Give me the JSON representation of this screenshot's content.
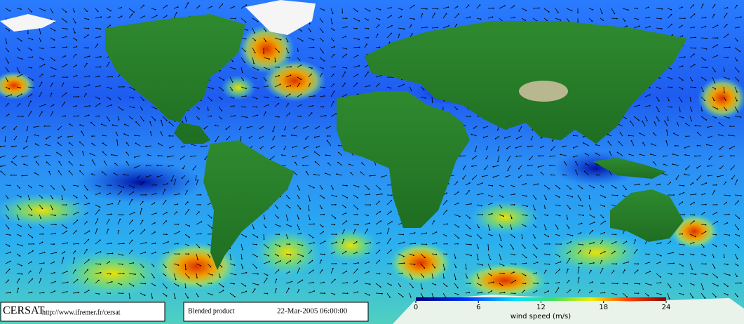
{
  "footer": {
    "logo": "CERSAT",
    "url": "http://www.ifremer.fr/cersat",
    "product": "Blended product",
    "datetime": "22-Mar-2005 06:00:00"
  },
  "colorbar": {
    "label": "wind speed (m/s)",
    "lim": [
      0,
      24
    ],
    "ticks": [
      0,
      6,
      12,
      18,
      24
    ]
  }
}
